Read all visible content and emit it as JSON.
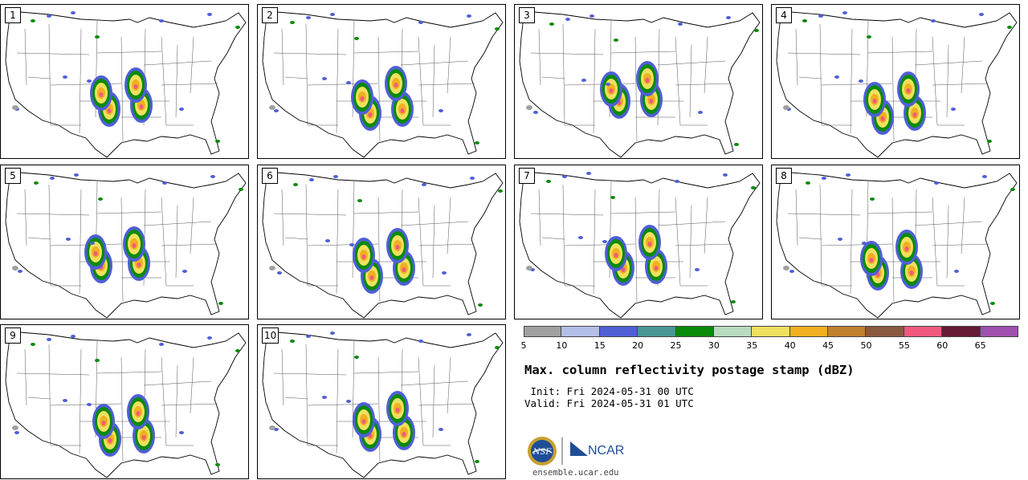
{
  "panels": [
    {
      "label": "1"
    },
    {
      "label": "2"
    },
    {
      "label": "3"
    },
    {
      "label": "4"
    },
    {
      "label": "5"
    },
    {
      "label": "6"
    },
    {
      "label": "7"
    },
    {
      "label": "8"
    },
    {
      "label": "9"
    },
    {
      "label": "10"
    }
  ],
  "colorbar": {
    "colors": [
      "#a0a0a0",
      "#b4bfe8",
      "#4f5fd6",
      "#4a9696",
      "#0a8a0a",
      "#b8dcc0",
      "#f0e060",
      "#f0b020",
      "#c08030",
      "#8a5a40",
      "#f05a7e",
      "#661a36",
      "#a050b0"
    ],
    "ticks": [
      "5",
      "10",
      "15",
      "20",
      "25",
      "30",
      "35",
      "40",
      "45",
      "50",
      "55",
      "60",
      "65"
    ]
  },
  "title": "Max. column reflectivity postage stamp (dBZ)",
  "init": " Init: Fri 2024-05-31 00 UTC",
  "valid": "Valid: Fri 2024-05-31 01 UTC",
  "logos": {
    "nsf": "NSF",
    "ncar": "NCAR"
  },
  "footer": "ensemble.ucar.edu"
}
